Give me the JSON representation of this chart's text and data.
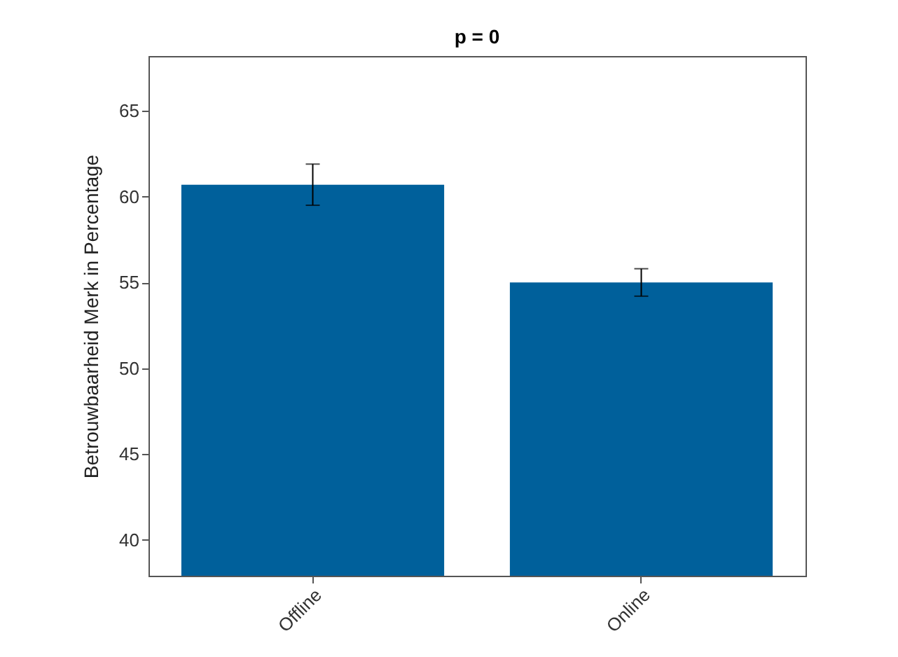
{
  "chart_data": {
    "type": "bar",
    "title": "p = 0",
    "ylabel": "Betrouwbaarheid Merk in Percentage",
    "categories": [
      "Offline",
      "Online"
    ],
    "values": [
      60.7,
      55.0
    ],
    "errors": [
      1.2,
      0.8
    ],
    "color": "#00609b",
    "ylim": [
      37.9,
      68.2
    ],
    "yticks": [
      40,
      45,
      50,
      55,
      60,
      65
    ],
    "grid": false
  }
}
